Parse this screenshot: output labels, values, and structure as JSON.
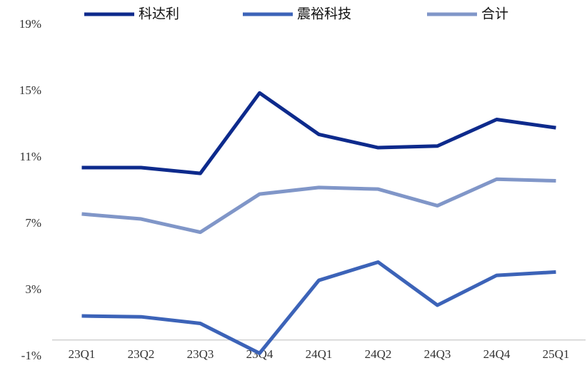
{
  "chart_data": {
    "type": "line",
    "categories": [
      "23Q1",
      "23Q2",
      "23Q3",
      "23Q4",
      "24Q1",
      "24Q2",
      "24Q3",
      "24Q4",
      "25Q1"
    ],
    "series": [
      {
        "name": "科达利",
        "color": "#0d2a8c",
        "values": [
          10.4,
          10.4,
          10.05,
          14.9,
          12.4,
          11.6,
          11.7,
          13.3,
          12.8
        ]
      },
      {
        "name": "震裕科技",
        "color": "#3c63b8",
        "values": [
          1.45,
          1.4,
          1.0,
          -0.8,
          3.6,
          4.7,
          2.1,
          3.9,
          4.1
        ]
      },
      {
        "name": "合计",
        "color": "#8096c8",
        "values": [
          7.6,
          7.3,
          6.5,
          8.8,
          9.2,
          9.1,
          8.1,
          9.7,
          9.6
        ]
      }
    ],
    "ylim": [
      -1,
      19
    ],
    "yticks": [
      {
        "value": -1,
        "label": "-1%"
      },
      {
        "value": 3,
        "label": "3%"
      },
      {
        "value": 7,
        "label": "7%"
      },
      {
        "value": 11,
        "label": "11%"
      },
      {
        "value": 15,
        "label": "15%"
      },
      {
        "value": 19,
        "label": "19%"
      }
    ],
    "legend": "top"
  }
}
